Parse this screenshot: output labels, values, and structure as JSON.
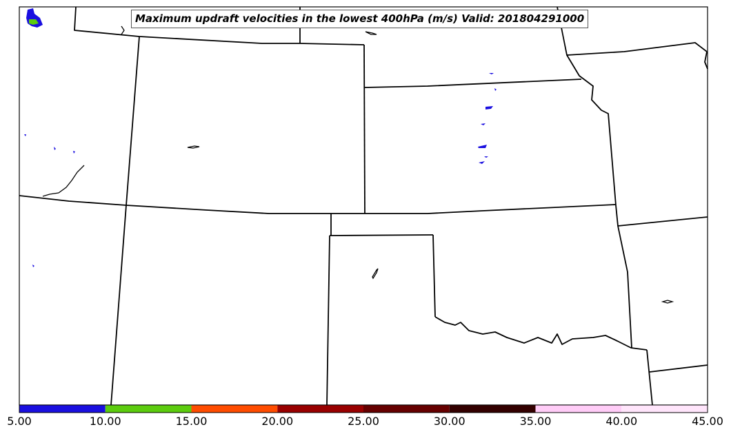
{
  "title": "Maximum updraft velocities in the lowest 400hPa (m/s) Valid: 201804291000",
  "colorbar": {
    "ticks": [
      "5.00",
      "10.00",
      "15.00",
      "20.00",
      "25.00",
      "30.00",
      "35.00",
      "40.00",
      "45.00"
    ],
    "colors": [
      "#1a0fe0",
      "#5ccc0e",
      "#ff4c00",
      "#990000",
      "#660000",
      "#330000",
      "#ffccf7",
      "#ffe5fb"
    ]
  }
}
